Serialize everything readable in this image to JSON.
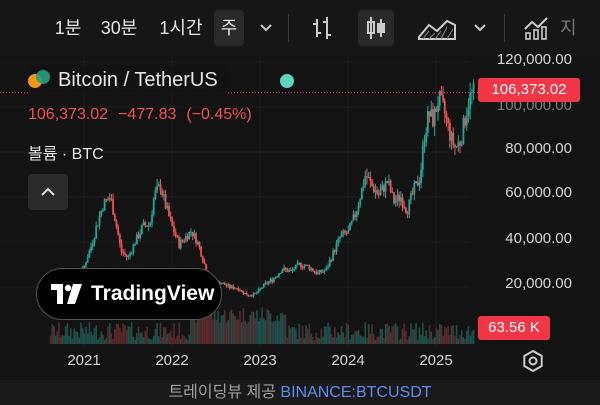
{
  "toolbar": {
    "intervals": [
      "1분",
      "30분",
      "1시간",
      "주"
    ],
    "active_interval": "주",
    "partial_label": "지"
  },
  "legend": {
    "symbol": "Bitcoin / TetherUS",
    "price": "106,373.02",
    "change": "−477.83",
    "change_pct": "(−0.45%)",
    "volume_label": "볼륨 · BTC"
  },
  "price_scale": {
    "labels": [
      "120,000.00",
      "80,000.00",
      "60,000.00",
      "40,000.00",
      "20,000.00"
    ],
    "partially_covered_label": "100,000.00",
    "last_price_badge": "106,373.02",
    "volume_badge": "63.56 K"
  },
  "time_axis": {
    "labels": [
      "2021",
      "2022",
      "2023",
      "2024",
      "2025"
    ]
  },
  "branding": {
    "logo_text": "TradingView"
  },
  "footer": {
    "text": "트레이딩뷰 제공",
    "source_link": "BINANCE:BTCUSDT"
  },
  "colors": {
    "up": "#26a69a",
    "down": "#ef5350",
    "badge": "#f23645",
    "link": "#5b8def",
    "status_dot": "#5fd4c2"
  },
  "chart_data": {
    "type": "candlestick",
    "timeframe": "weekly",
    "symbol": "BINANCE:BTCUSDT",
    "ylim": [
      0,
      125000
    ],
    "x_ticks": [
      "2021",
      "2022",
      "2023",
      "2024",
      "2025"
    ],
    "price_series": [
      [
        2020.6,
        11000
      ],
      [
        2020.75,
        10800
      ],
      [
        2020.83,
        13500
      ],
      [
        2020.92,
        19000
      ],
      [
        2021.0,
        29000
      ],
      [
        2021.08,
        38000
      ],
      [
        2021.15,
        48000
      ],
      [
        2021.22,
        57000
      ],
      [
        2021.3,
        60000
      ],
      [
        2021.37,
        47000
      ],
      [
        2021.42,
        36000
      ],
      [
        2021.5,
        33000
      ],
      [
        2021.58,
        40000
      ],
      [
        2021.67,
        47000
      ],
      [
        2021.75,
        48000
      ],
      [
        2021.8,
        61000
      ],
      [
        2021.87,
        65000
      ],
      [
        2021.92,
        57000
      ],
      [
        2022.0,
        47000
      ],
      [
        2022.08,
        39000
      ],
      [
        2022.15,
        42000
      ],
      [
        2022.22,
        45000
      ],
      [
        2022.3,
        39000
      ],
      [
        2022.37,
        30000
      ],
      [
        2022.45,
        21000
      ],
      [
        2022.55,
        22000
      ],
      [
        2022.65,
        20000
      ],
      [
        2022.75,
        19500
      ],
      [
        2022.85,
        16500
      ],
      [
        2022.95,
        16800
      ],
      [
        2023.05,
        21000
      ],
      [
        2023.15,
        23500
      ],
      [
        2023.25,
        28000
      ],
      [
        2023.35,
        27000
      ],
      [
        2023.45,
        30000
      ],
      [
        2023.55,
        29000
      ],
      [
        2023.65,
        26000
      ],
      [
        2023.75,
        27500
      ],
      [
        2023.83,
        35000
      ],
      [
        2023.92,
        43000
      ],
      [
        2024.0,
        44000
      ],
      [
        2024.08,
        52000
      ],
      [
        2024.15,
        62000
      ],
      [
        2024.2,
        70000
      ],
      [
        2024.27,
        65000
      ],
      [
        2024.35,
        61000
      ],
      [
        2024.45,
        67000
      ],
      [
        2024.52,
        58000
      ],
      [
        2024.6,
        60000
      ],
      [
        2024.67,
        54000
      ],
      [
        2024.75,
        63000
      ],
      [
        2024.82,
        69000
      ],
      [
        2024.87,
        88000
      ],
      [
        2024.92,
        97000
      ],
      [
        2024.97,
        94000
      ],
      [
        2025.03,
        104000
      ],
      [
        2025.1,
        97000
      ],
      [
        2025.17,
        86000
      ],
      [
        2025.22,
        82000
      ],
      [
        2025.28,
        85000
      ],
      [
        2025.33,
        95000
      ],
      [
        2025.38,
        104000
      ],
      [
        2025.43,
        106373
      ]
    ],
    "last_price": 106373.02,
    "last_volume": "63.56 K"
  }
}
